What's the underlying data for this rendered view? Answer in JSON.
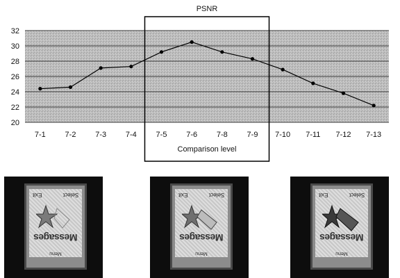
{
  "chart_data": {
    "type": "line",
    "title": "PSNR",
    "xlabel": "Comparison level",
    "ylabel": "",
    "categories": [
      "7-1",
      "7-2",
      "7-3",
      "7-4",
      "7-5",
      "7-6",
      "7-8",
      "7-9",
      "7-10",
      "7-11",
      "7-12",
      "7-13"
    ],
    "series": [
      {
        "values": [
          24.4,
          24.6,
          27.1,
          27.3,
          29.2,
          30.5,
          29.2,
          28.3,
          26.9,
          25.1,
          23.8,
          22.2
        ]
      }
    ],
    "ylim": [
      20,
      32
    ],
    "yticks": [
      20,
      22,
      24,
      26,
      28,
      30,
      32
    ],
    "grid": true,
    "highlight_range": [
      "7-5",
      "7-9"
    ]
  },
  "thumbnails": [
    {
      "left_key": "Exit",
      "right_key": "Select",
      "title": "Messages",
      "menu": "Menu",
      "icon": "starfish-icon"
    },
    {
      "left_key": "Exit",
      "right_key": "Select",
      "title": "Messages",
      "menu": "Menu",
      "icon": "starfish-bottle-icon"
    },
    {
      "left_key": "Exit",
      "right_key": "Select",
      "title": "Messages",
      "menu": "Menu",
      "icon": "starfish-bottle-icon"
    }
  ],
  "colors": {
    "line": "#000000",
    "plot_bg": "#b4b4b4",
    "grid": "#3a3a3a"
  }
}
